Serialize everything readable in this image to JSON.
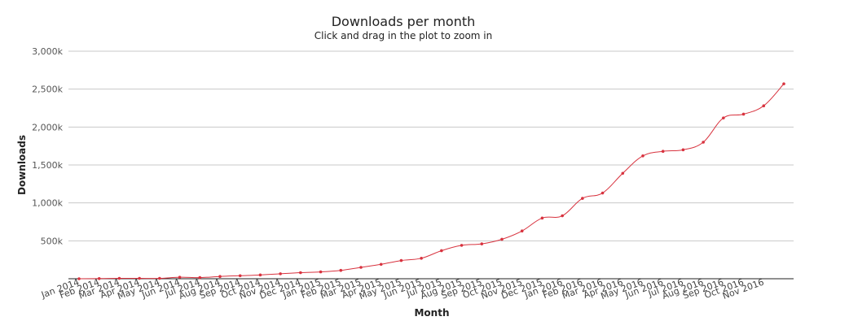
{
  "chart_data": {
    "type": "line",
    "title": "Downloads per month",
    "subtitle": "Click and drag in the plot to zoom in",
    "xlabel": "Month",
    "ylabel": "Downloads",
    "ylim": [
      0,
      3000000
    ],
    "y_ticks": [
      {
        "value": 500000,
        "label": "500k"
      },
      {
        "value": 1000000,
        "label": "1,000k"
      },
      {
        "value": 1500000,
        "label": "1,500k"
      },
      {
        "value": 2000000,
        "label": "2,000k"
      },
      {
        "value": 2500000,
        "label": "2,500k"
      },
      {
        "value": 3000000,
        "label": "3,000k"
      }
    ],
    "x_tick_labels": [
      "Jan 2014",
      "Feb 2014",
      "Mar 2014",
      "Apr 2014",
      "May 2014",
      "Jun 2014",
      "Jul 2014",
      "Aug 2014",
      "Sep 2014",
      "Oct 2014",
      "Nov 2014",
      "Dec 2014",
      "Jan 2015",
      "Feb 2015",
      "Mar 2015",
      "Apr 2015",
      "May 2015",
      "Jun 2015",
      "Jul 2015",
      "Aug 2015",
      "Sep 2015",
      "Oct 2015",
      "Nov 2015",
      "Dec 2015",
      "Jan 2016",
      "Feb 2016",
      "Mar 2016",
      "Apr 2016",
      "May 2016",
      "Jun 2016",
      "Jul 2016",
      "Aug 2016",
      "Sep 2016",
      "Oct 2016",
      "Nov 2016"
    ],
    "grid": true,
    "legend": "none",
    "series": [
      {
        "color": "#d8333f",
        "values": [
          {
            "x": "2014-01-01",
            "y": 0
          },
          {
            "x": "2014-02-01",
            "y": 2000
          },
          {
            "x": "2014-03-01",
            "y": 5000
          },
          {
            "x": "2014-04-01",
            "y": 5000
          },
          {
            "x": "2014-05-01",
            "y": 5000
          },
          {
            "x": "2014-06-01",
            "y": 20000
          },
          {
            "x": "2014-07-01",
            "y": 15000
          },
          {
            "x": "2014-08-01",
            "y": 30000
          },
          {
            "x": "2014-09-01",
            "y": 40000
          },
          {
            "x": "2014-10-01",
            "y": 50000
          },
          {
            "x": "2014-11-01",
            "y": 65000
          },
          {
            "x": "2014-12-01",
            "y": 80000
          },
          {
            "x": "2015-01-01",
            "y": 90000
          },
          {
            "x": "2015-02-01",
            "y": 110000
          },
          {
            "x": "2015-03-01",
            "y": 150000
          },
          {
            "x": "2015-04-01",
            "y": 190000
          },
          {
            "x": "2015-05-01",
            "y": 240000
          },
          {
            "x": "2015-06-01",
            "y": 270000
          },
          {
            "x": "2015-07-01",
            "y": 370000
          },
          {
            "x": "2015-08-01",
            "y": 440000
          },
          {
            "x": "2015-09-01",
            "y": 460000
          },
          {
            "x": "2015-10-01",
            "y": 520000
          },
          {
            "x": "2015-11-01",
            "y": 630000
          },
          {
            "x": "2015-12-01",
            "y": 800000
          },
          {
            "x": "2016-01-01",
            "y": 830000
          },
          {
            "x": "2016-02-01",
            "y": 1060000
          },
          {
            "x": "2016-03-01",
            "y": 1130000
          },
          {
            "x": "2016-04-01",
            "y": 1390000
          },
          {
            "x": "2016-05-01",
            "y": 1620000
          },
          {
            "x": "2016-06-01",
            "y": 1680000
          },
          {
            "x": "2016-07-01",
            "y": 1700000
          },
          {
            "x": "2016-08-01",
            "y": 1800000
          },
          {
            "x": "2016-09-01",
            "y": 2120000
          },
          {
            "x": "2016-10-01",
            "y": 2170000
          },
          {
            "x": "2016-11-01",
            "y": 2280000
          },
          {
            "x": "2016-12-01",
            "y": 2570000
          }
        ]
      }
    ]
  }
}
